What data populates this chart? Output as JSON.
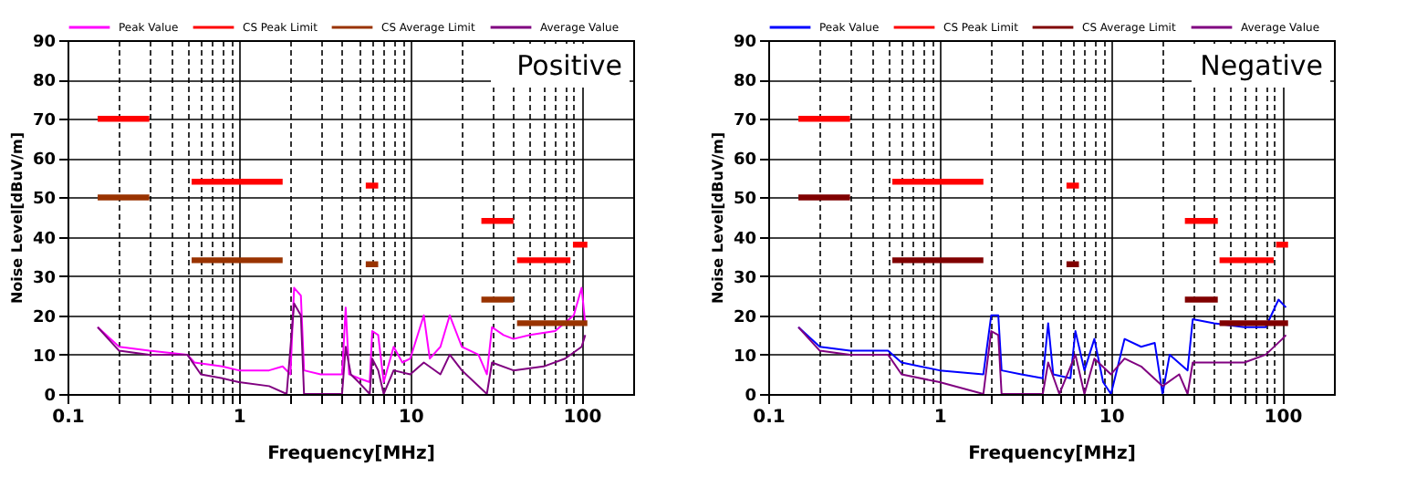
{
  "chart_data": [
    {
      "type": "line",
      "xlabel": "Frequency[MHz]",
      "ylabel": "Noise Level[dBuV/m]",
      "annotations": [
        "Positive"
      ],
      "log": "x",
      "grid": true,
      "legend": "top",
      "xlim": [
        0.1,
        200
      ],
      "ylim": [
        0,
        90
      ],
      "xticks": [
        0.1,
        {
          "value": 0.2,
          "label": null
        },
        {
          "value": 0.3,
          "label": null
        },
        {
          "value": 0.4,
          "label": null
        },
        {
          "value": 0.5,
          "label": null
        },
        {
          "value": 0.6,
          "label": null
        },
        {
          "value": 0.7,
          "label": null
        },
        {
          "value": 0.8,
          "label": null
        },
        {
          "value": 0.9,
          "label": null
        },
        1,
        {
          "value": 2,
          "label": null
        },
        {
          "value": 3,
          "label": null
        },
        {
          "value": 4,
          "label": null
        },
        {
          "value": 5,
          "label": null
        },
        {
          "value": 6,
          "label": null
        },
        {
          "value": 7,
          "label": null
        },
        {
          "value": 8,
          "label": null
        },
        {
          "value": 9,
          "label": null
        },
        10,
        {
          "value": 20,
          "label": null
        },
        {
          "value": 30,
          "label": null
        },
        {
          "value": 40,
          "label": null
        },
        {
          "value": 50,
          "label": null
        },
        {
          "value": 60,
          "label": null
        },
        {
          "value": 70,
          "label": null
        },
        {
          "value": 80,
          "label": null
        },
        {
          "value": 90,
          "label": null
        },
        100
      ],
      "yticks": [
        0,
        10,
        20,
        30,
        40,
        50,
        60,
        70,
        80,
        90
      ],
      "series": [
        {
          "name": "Peak Value",
          "color": "#ff00ff",
          "x": [
            0.15,
            0.2,
            0.3,
            0.5,
            0.55,
            0.8,
            1,
            1.5,
            1.8,
            2.0,
            2.1,
            2.3,
            2.4,
            3,
            4,
            4.2,
            4.4,
            5,
            5.8,
            6,
            6.5,
            7,
            8,
            9,
            10,
            12,
            13,
            15,
            17,
            20,
            25,
            28,
            30,
            35,
            40,
            50,
            70,
            90,
            100,
            105
          ],
          "values": [
            17,
            12,
            11,
            10,
            8,
            7,
            6,
            6,
            7,
            5,
            27,
            25,
            6,
            5,
            5,
            22,
            5,
            4,
            3,
            16,
            15,
            3,
            12,
            8,
            9,
            20,
            9,
            12,
            20,
            12,
            10,
            5,
            17,
            15,
            14,
            15,
            16,
            20,
            27,
            18
          ]
        },
        {
          "name": "CS Peak Limit",
          "color": "#ff0000",
          "x": [
            0.15,
            0.3,
            0.4,
            0.53,
            1.8,
            3,
            5.5,
            6.5,
            12,
            26,
            40,
            41,
            42,
            86,
            87,
            89,
            108
          ],
          "values": [
            70,
            70,
            null,
            54,
            54,
            null,
            53,
            53,
            null,
            44,
            44,
            null,
            34,
            34,
            null,
            38,
            38
          ]
        },
        {
          "name": "CS Average Limit",
          "color": "#993300",
          "x": [
            0.15,
            0.3,
            0.4,
            0.53,
            1.8,
            3,
            5.5,
            6.5,
            12,
            26,
            40,
            41,
            42,
            108
          ],
          "values": [
            50,
            50,
            null,
            34,
            34,
            null,
            33,
            33,
            null,
            24,
            24,
            null,
            18,
            18
          ]
        },
        {
          "name": "Average Value",
          "color": "#800080",
          "x": [
            0.15,
            0.2,
            0.3,
            0.5,
            0.6,
            0.8,
            1,
            1.5,
            1.9,
            2.1,
            2.3,
            2.4,
            4,
            4.2,
            4.5,
            5,
            5.8,
            6,
            6.5,
            7,
            8,
            10,
            12,
            15,
            17,
            20,
            28,
            30,
            40,
            60,
            80,
            100,
            105
          ],
          "values": [
            17,
            11,
            10,
            10,
            5,
            4,
            3,
            2,
            0,
            23,
            20,
            0,
            0,
            12,
            5,
            3,
            0,
            9,
            6,
            0,
            6,
            5,
            8,
            5,
            10,
            6,
            0,
            8,
            6,
            7,
            9,
            12,
            15
          ]
        }
      ]
    },
    {
      "type": "line",
      "xlabel": "Frequency[MHz]",
      "ylabel": "Noise Level[dBuV/m]",
      "annotations": [
        "Negative"
      ],
      "log": "x",
      "grid": true,
      "legend": "top",
      "xlim": [
        0.1,
        200
      ],
      "ylim": [
        0,
        90
      ],
      "xticks": [
        0.1,
        {
          "value": 0.2,
          "label": null
        },
        {
          "value": 0.3,
          "label": null
        },
        {
          "value": 0.4,
          "label": null
        },
        {
          "value": 0.5,
          "label": null
        },
        {
          "value": 0.6,
          "label": null
        },
        {
          "value": 0.7,
          "label": null
        },
        {
          "value": 0.8,
          "label": null
        },
        {
          "value": 0.9,
          "label": null
        },
        1,
        {
          "value": 2,
          "label": null
        },
        {
          "value": 3,
          "label": null
        },
        {
          "value": 4,
          "label": null
        },
        {
          "value": 5,
          "label": null
        },
        {
          "value": 6,
          "label": null
        },
        {
          "value": 7,
          "label": null
        },
        {
          "value": 8,
          "label": null
        },
        {
          "value": 9,
          "label": null
        },
        10,
        {
          "value": 20,
          "label": null
        },
        {
          "value": 30,
          "label": null
        },
        {
          "value": 40,
          "label": null
        },
        {
          "value": 50,
          "label": null
        },
        {
          "value": 60,
          "label": null
        },
        {
          "value": 70,
          "label": null
        },
        {
          "value": 80,
          "label": null
        },
        {
          "value": 90,
          "label": null
        },
        100
      ],
      "yticks": [
        0,
        10,
        20,
        30,
        40,
        50,
        60,
        70,
        80,
        90
      ],
      "series": [
        {
          "name": "Peak Value",
          "color": "#0000ff",
          "x": [
            0.15,
            0.2,
            0.3,
            0.5,
            0.6,
            1,
            1.8,
            2.0,
            2.2,
            2.3,
            3,
            4,
            4.3,
            4.6,
            5.8,
            6.2,
            7,
            8,
            9,
            10,
            12,
            15,
            18,
            20,
            22,
            28,
            30,
            40,
            60,
            80,
            95,
            105
          ],
          "values": [
            17,
            12,
            11,
            11,
            8,
            6,
            5,
            20,
            20,
            6,
            5,
            4,
            18,
            5,
            4,
            16,
            6,
            14,
            3,
            0,
            14,
            12,
            13,
            0,
            10,
            6,
            19,
            18,
            17,
            17,
            24,
            22
          ]
        },
        {
          "name": "CS Peak Limit",
          "color": "#ff0000",
          "x": [
            0.15,
            0.3,
            0.4,
            0.53,
            1.8,
            3,
            5.5,
            6.5,
            12,
            27,
            42,
            42.5,
            43,
            89,
            90,
            92,
            108
          ],
          "values": [
            70,
            70,
            null,
            54,
            54,
            null,
            53,
            53,
            null,
            44,
            44,
            null,
            34,
            34,
            null,
            38,
            38
          ]
        },
        {
          "name": "CS Average Limit",
          "color": "#800000",
          "x": [
            0.15,
            0.3,
            0.4,
            0.53,
            1.8,
            3,
            5.5,
            6.5,
            12,
            27,
            42,
            42.5,
            43,
            108
          ],
          "values": [
            50,
            50,
            null,
            34,
            34,
            null,
            33,
            33,
            null,
            24,
            24,
            null,
            18,
            18
          ]
        },
        {
          "name": "Average Value",
          "color": "#800080",
          "x": [
            0.15,
            0.2,
            0.3,
            0.5,
            0.6,
            1,
            1.8,
            2.0,
            2.2,
            2.3,
            4,
            4.3,
            5,
            6.2,
            7,
            8,
            10,
            12,
            15,
            20,
            25,
            28,
            30,
            40,
            60,
            80,
            100,
            105
          ],
          "values": [
            17,
            11,
            10,
            10,
            5,
            3,
            0,
            16,
            15,
            0,
            0,
            8,
            0,
            10,
            0,
            9,
            5,
            9,
            7,
            2,
            5,
            0,
            8,
            8,
            8,
            10,
            14,
            15
          ]
        }
      ]
    }
  ]
}
